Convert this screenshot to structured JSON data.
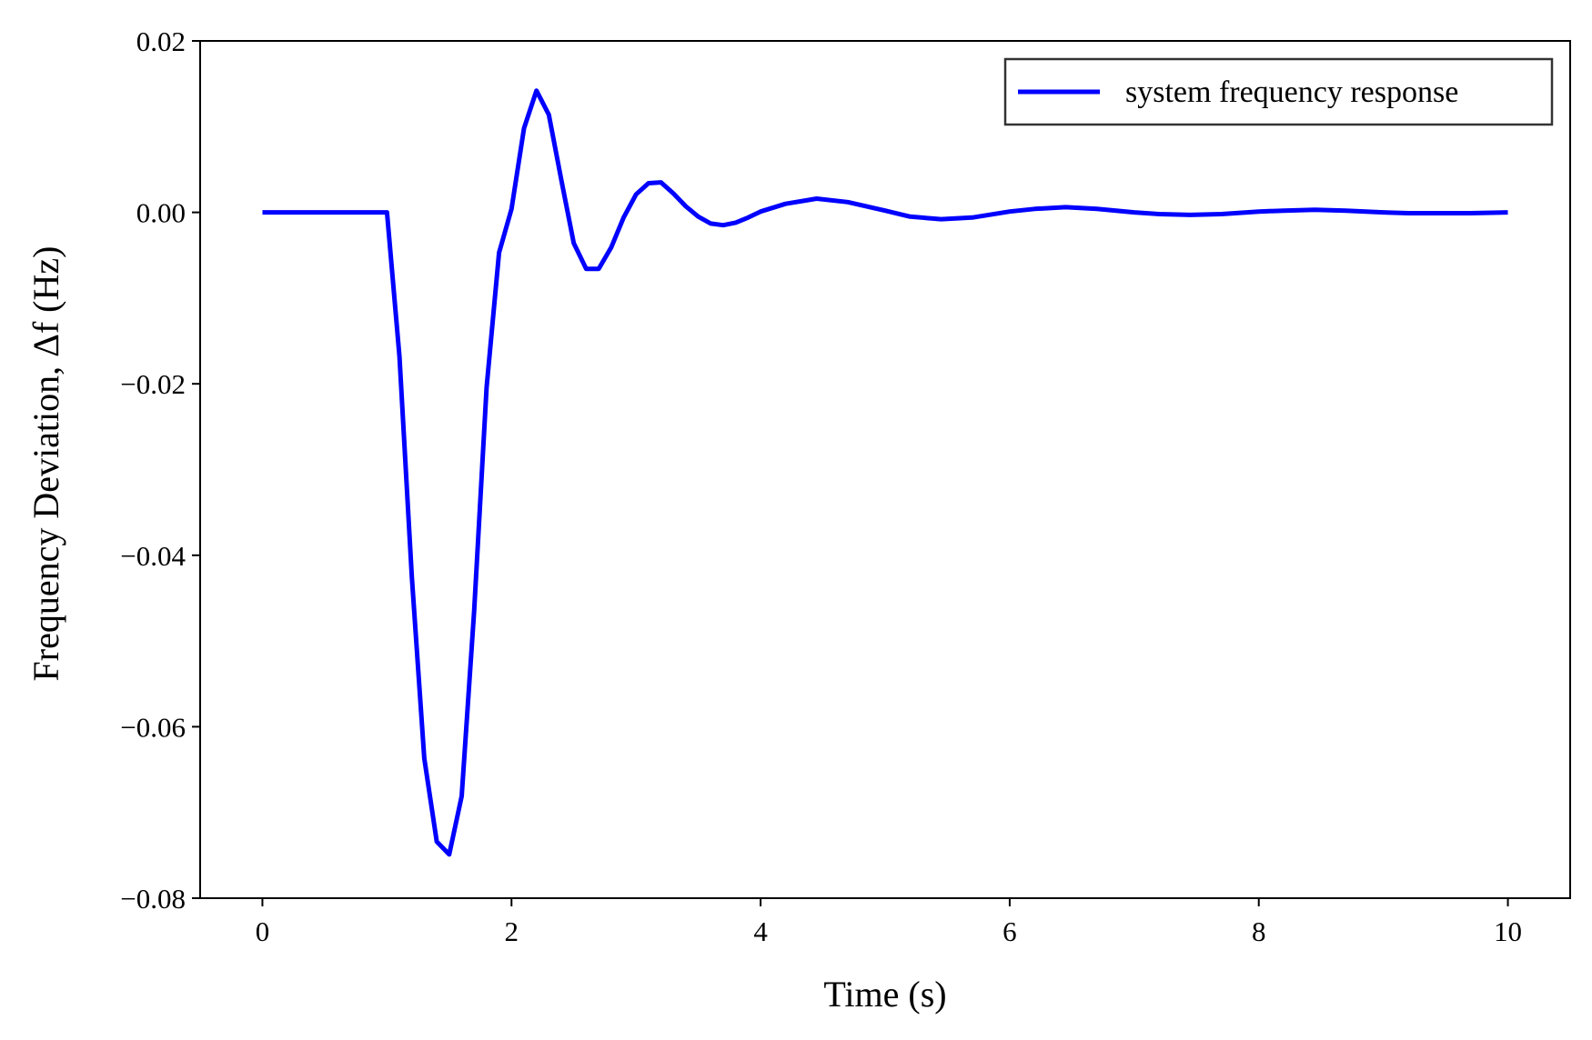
{
  "chart_data": {
    "type": "line",
    "title": "",
    "xlabel": "Time (s)",
    "ylabel": "Frequency Deviation, Δf (Hz)",
    "xlim": [
      -0.5,
      10.5
    ],
    "ylim": [
      -0.08,
      0.02
    ],
    "x_ticks": [
      0,
      2,
      4,
      6,
      8,
      10
    ],
    "x_tick_labels": [
      "0",
      "2",
      "4",
      "6",
      "8",
      "10"
    ],
    "y_ticks": [
      0.02,
      0.0,
      -0.02,
      -0.04,
      -0.06,
      -0.08
    ],
    "y_tick_labels": [
      "0.02",
      "0.00",
      "−0.02",
      "−0.04",
      "−0.06",
      "−0.08"
    ],
    "grid": false,
    "legend": {
      "position": "top-right",
      "entries": [
        "system frequency response"
      ]
    },
    "series": [
      {
        "name": "system frequency response",
        "color": "#0000ff",
        "x": [
          0,
          0.5,
          1.0,
          1.1,
          1.2,
          1.3,
          1.4,
          1.5,
          1.6,
          1.7,
          1.8,
          1.9,
          2.0,
          2.1,
          2.2,
          2.3,
          2.4,
          2.5,
          2.6,
          2.7,
          2.8,
          2.9,
          3.0,
          3.1,
          3.2,
          3.3,
          3.4,
          3.5,
          3.6,
          3.7,
          3.8,
          3.9,
          4.0,
          4.2,
          4.45,
          4.7,
          5.0,
          5.2,
          5.45,
          5.7,
          6.0,
          6.2,
          6.45,
          6.7,
          7.0,
          7.2,
          7.45,
          7.7,
          8.0,
          8.2,
          8.45,
          8.7,
          9.0,
          9.2,
          9.45,
          9.7,
          10.0
        ],
        "y": [
          0,
          0,
          0,
          -0.0168,
          -0.0425,
          -0.0637,
          -0.0734,
          -0.0749,
          -0.0681,
          -0.0465,
          -0.0204,
          -0.0047,
          0.0004,
          0.0098,
          0.0142,
          0.0114,
          0.0038,
          -0.0036,
          -0.0066,
          -0.0066,
          -0.0041,
          -0.0006,
          0.0021,
          0.0034,
          0.0035,
          0.0022,
          0.0007,
          -0.0005,
          -0.0013,
          -0.0015,
          -0.0012,
          -0.0006,
          0.0001,
          0.001,
          0.0016,
          0.0012,
          0.0002,
          -0.0005,
          -0.0008,
          -0.0006,
          0.0001,
          0.0004,
          0.0006,
          0.0004,
          0.0,
          -0.0002,
          -0.0003,
          -0.0002,
          0.0001,
          0.0002,
          0.0003,
          0.0002,
          0.0,
          -0.0001,
          -0.0001,
          -0.0001,
          0.0
        ]
      }
    ]
  }
}
